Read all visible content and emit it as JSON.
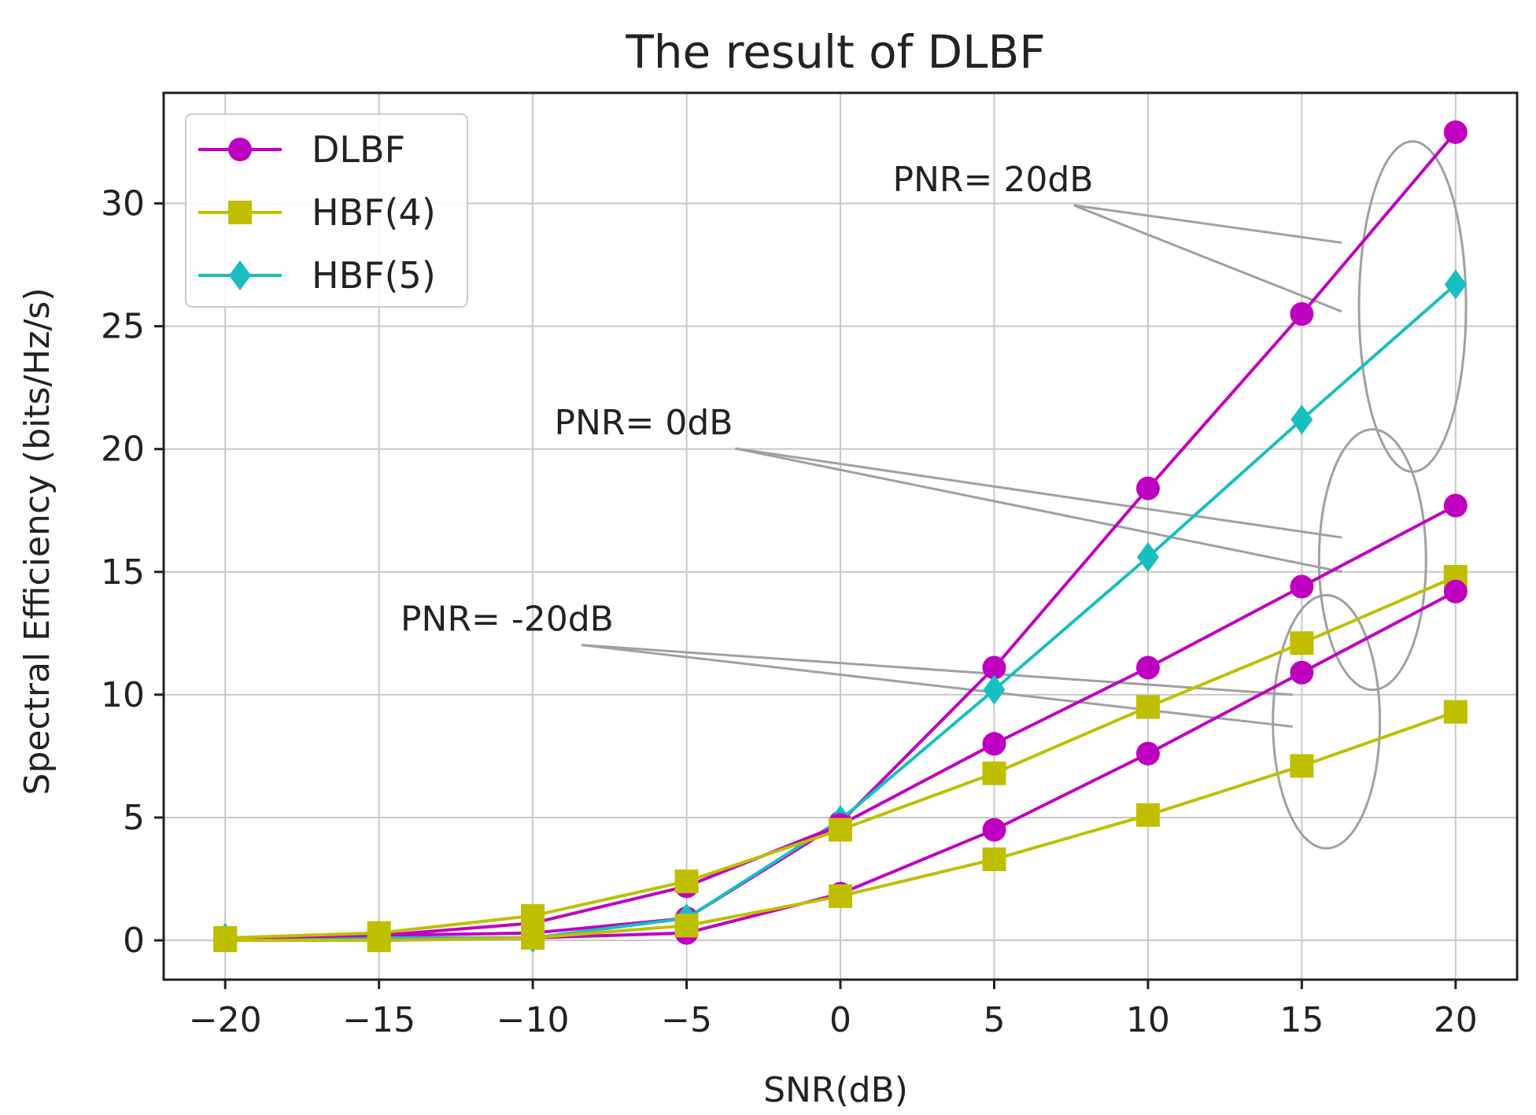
{
  "chart_data": {
    "type": "line",
    "title": "The result of DLBF",
    "xlabel": "SNR(dB)",
    "ylabel": "Spectral Efficiency (bits/Hz/s)",
    "xlim": [
      -22,
      22
    ],
    "ylim": [
      -1.6,
      34.5
    ],
    "x": [
      -20,
      -15,
      -10,
      -5,
      0,
      5,
      10,
      15,
      20
    ],
    "x_ticks": [
      -20,
      -15,
      -10,
      -5,
      0,
      5,
      10,
      15,
      20
    ],
    "x_tick_labels": [
      "−20",
      "−15",
      "−10",
      "−5",
      "0",
      "5",
      "10",
      "15",
      "20"
    ],
    "y_ticks": [
      0,
      5,
      10,
      15,
      20,
      25,
      30
    ],
    "y_tick_labels": [
      "0",
      "5",
      "10",
      "15",
      "20",
      "25",
      "30"
    ],
    "grid": true,
    "legend_position": "top-left",
    "legend": [
      {
        "label": "DLBF",
        "color": "#c000c0",
        "marker": "circle"
      },
      {
        "label": "HBF(4)",
        "color": "#bfbf00",
        "marker": "square"
      },
      {
        "label": "HBF(5)",
        "color": "#17bfbf",
        "marker": "diamond"
      }
    ],
    "series": [
      {
        "legend_index": 0,
        "group": "PNR= 20dB",
        "color": "#c000c0",
        "marker": "circle",
        "values": [
          0.1,
          0.2,
          0.3,
          0.9,
          4.8,
          11.1,
          18.4,
          25.5,
          32.9
        ]
      },
      {
        "legend_index": 2,
        "group": "PNR= 20dB",
        "color": "#17bfbf",
        "marker": "diamond",
        "values": [
          0.1,
          0.1,
          0.1,
          0.9,
          4.9,
          10.2,
          15.6,
          21.2,
          26.7
        ]
      },
      {
        "legend_index": 0,
        "group": "PNR= 0dB",
        "color": "#c000c0",
        "marker": "circle",
        "values": [
          0.1,
          0.2,
          0.7,
          2.2,
          4.7,
          8.0,
          11.1,
          14.4,
          17.7
        ]
      },
      {
        "legend_index": 1,
        "group": "PNR= 0dB",
        "color": "#bfbf00",
        "marker": "square",
        "values": [
          0.1,
          0.3,
          1.0,
          2.4,
          4.5,
          6.8,
          9.5,
          12.1,
          14.8
        ]
      },
      {
        "legend_index": 0,
        "group": "PNR= -20dB",
        "color": "#c000c0",
        "marker": "circle",
        "values": [
          0.0,
          0.0,
          0.1,
          0.3,
          1.9,
          4.5,
          7.6,
          10.9,
          14.2
        ]
      },
      {
        "legend_index": 1,
        "group": "PNR= -20dB",
        "color": "#bfbf00",
        "marker": "square",
        "values": [
          0.0,
          0.0,
          0.1,
          0.6,
          1.8,
          3.3,
          5.1,
          7.1,
          9.3
        ]
      }
    ],
    "annotations": [
      {
        "text": "PNR= 20dB",
        "x": 1.7,
        "y": 30.5,
        "ellipse_x": 18.6,
        "ellipse_y": 25.8,
        "targets": [
          {
            "x": 16.3,
            "y": 28.4
          },
          {
            "x": 16.3,
            "y": 25.6
          }
        ]
      },
      {
        "text": "PNR= 0dB",
        "x": -9.3,
        "y": 20.6,
        "ellipse_x": 17.3,
        "ellipse_y": 15.5,
        "targets": [
          {
            "x": 16.3,
            "y": 16.4
          },
          {
            "x": 16.3,
            "y": 15.0
          }
        ]
      },
      {
        "text": "PNR= -20dB",
        "x": -14.3,
        "y": 12.6,
        "ellipse_x": 15.8,
        "ellipse_y": 8.9,
        "targets": [
          {
            "x": 14.7,
            "y": 10.0
          },
          {
            "x": 14.7,
            "y": 8.7
          }
        ]
      }
    ]
  }
}
